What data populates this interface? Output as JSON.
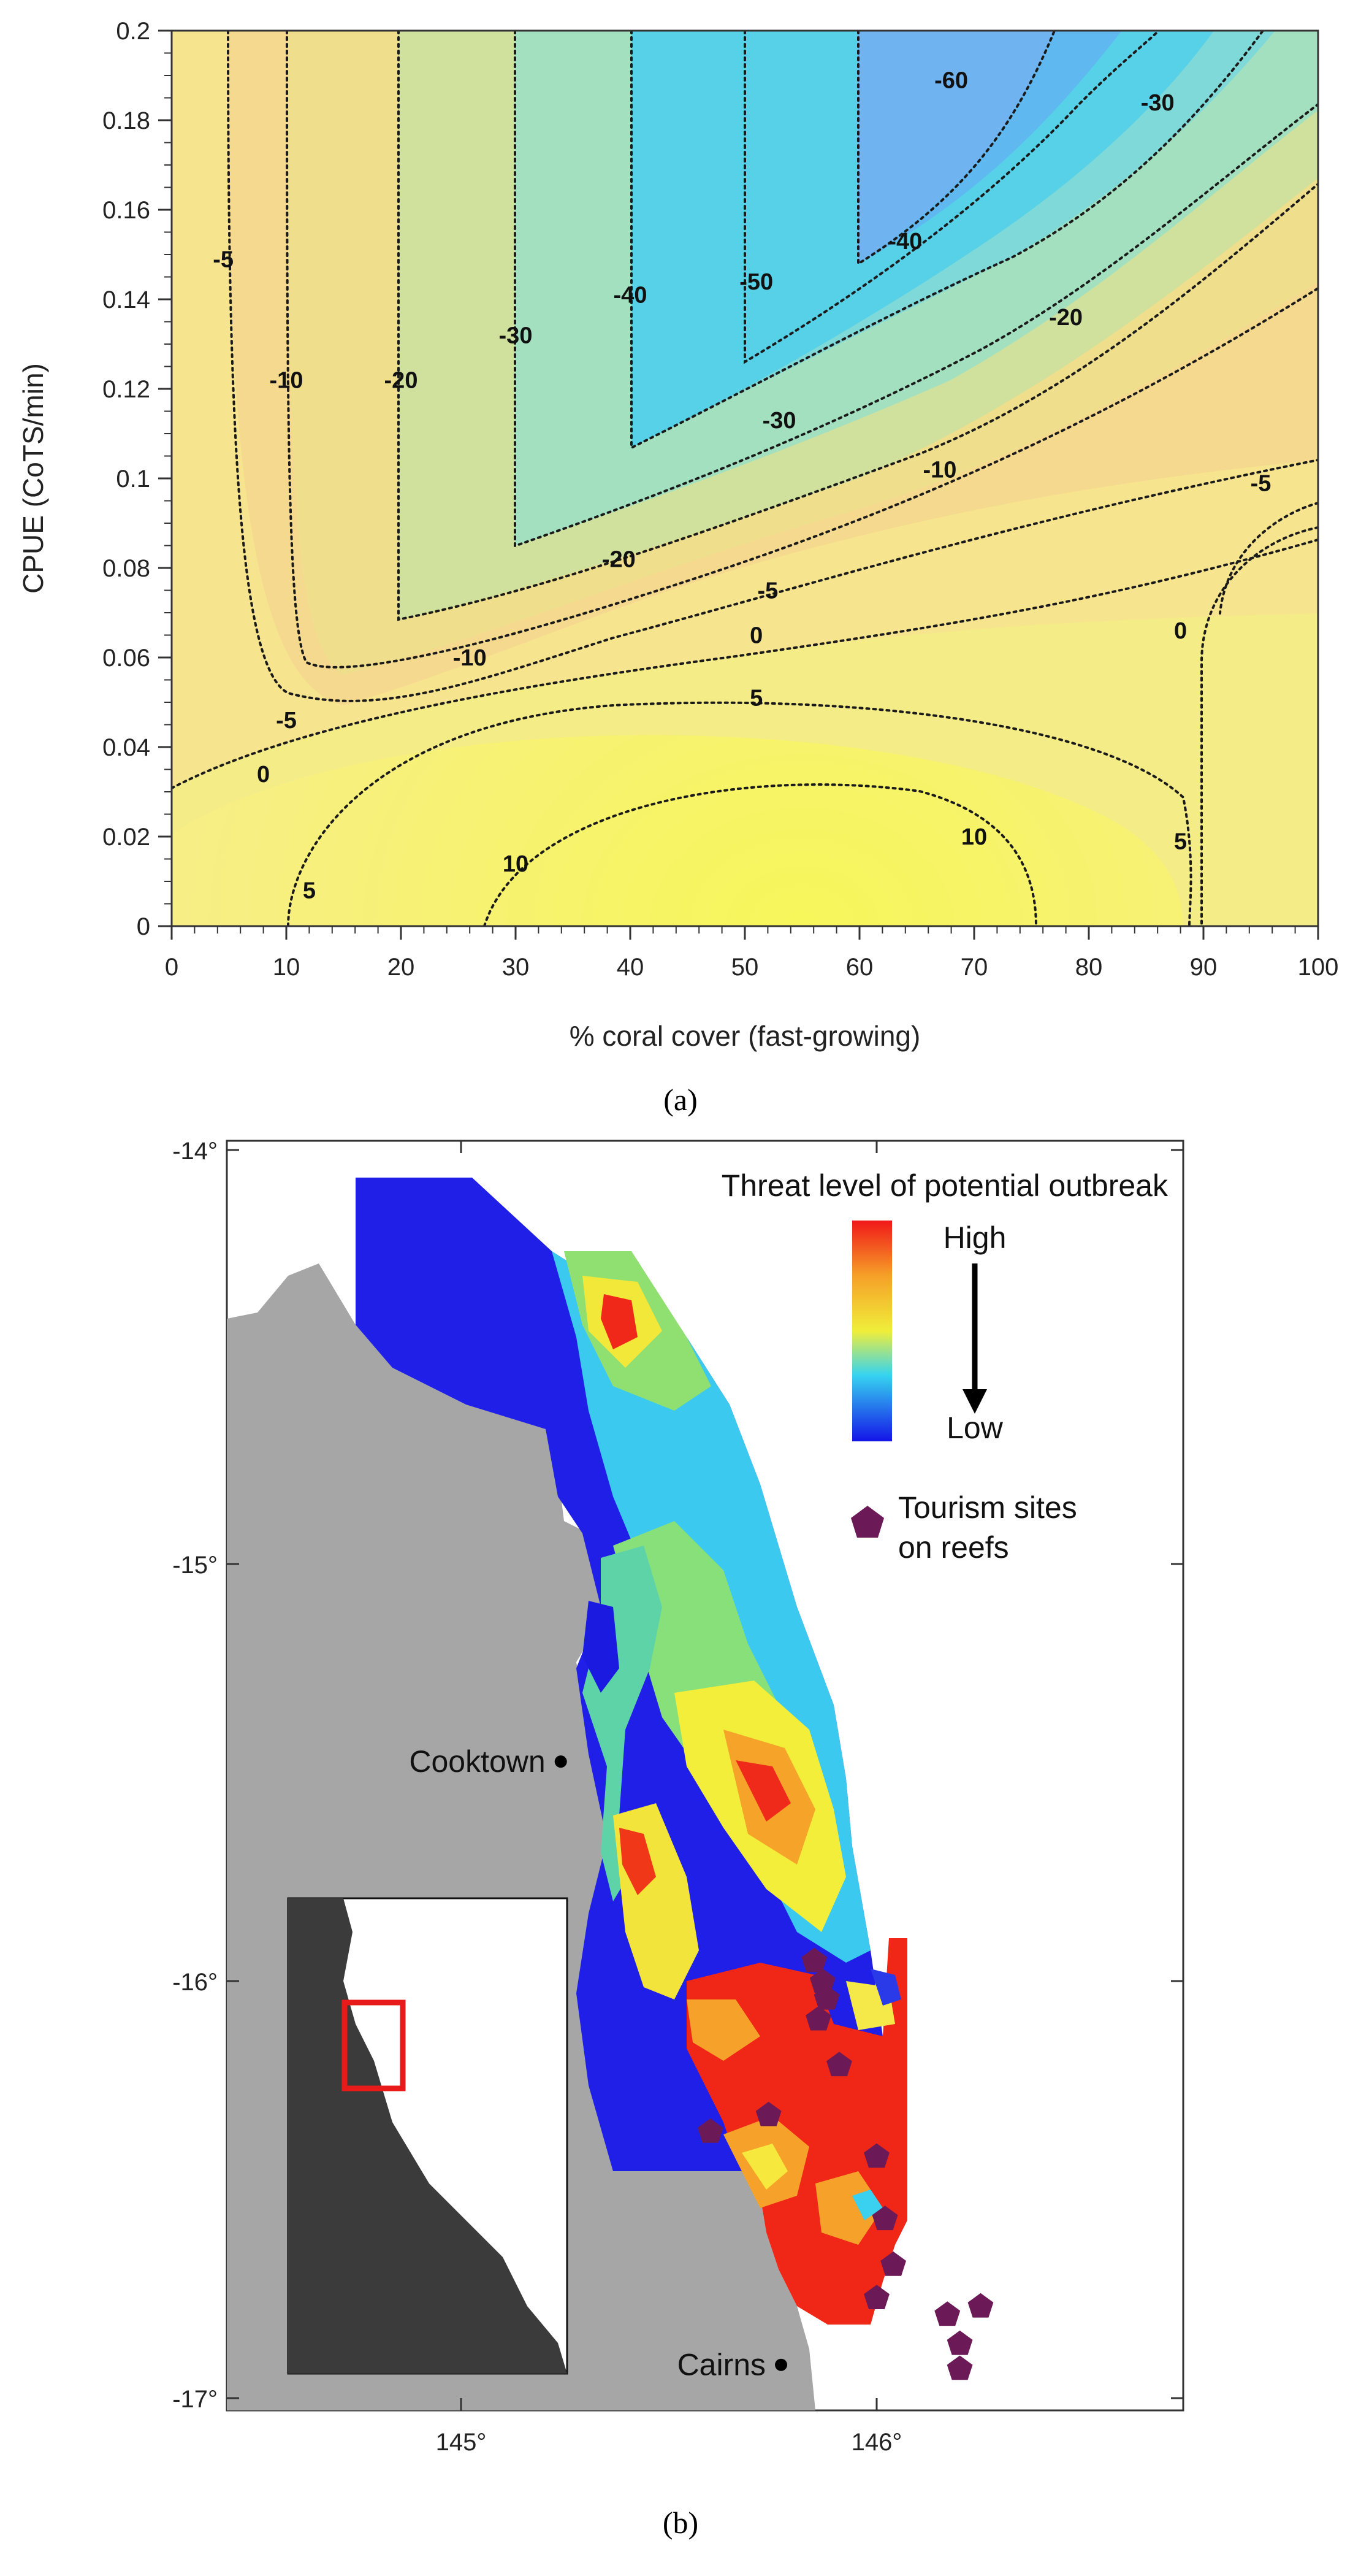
{
  "panels": {
    "a_label": "(a)",
    "b_label": "(b)"
  },
  "chart_data": [
    {
      "type": "contour",
      "title": "",
      "xlabel": "% coral cover (fast-growing)",
      "ylabel": "CPUE (CoTS/min)",
      "xlim": [
        0,
        100
      ],
      "ylim": [
        0,
        0.2
      ],
      "x_ticks": [
        "0",
        "10",
        "20",
        "30",
        "40",
        "50",
        "60",
        "70",
        "80",
        "90",
        "100"
      ],
      "y_ticks": [
        "0",
        "0.02",
        "0.04",
        "0.06",
        "0.08",
        "0.1",
        "0.12",
        "0.14",
        "0.16",
        "0.18",
        "0.2"
      ],
      "contour_levels": [
        -60,
        -50,
        -40,
        -30,
        -20,
        -10,
        -5,
        0,
        5,
        10
      ],
      "colormap_low_color": "#6aa8f0",
      "colormap_high_color": "#f5f55a",
      "contour_labels": [
        {
          "text": "-5",
          "x": 4.5,
          "y": 0.149
        },
        {
          "text": "-10",
          "x": 10,
          "y": 0.122
        },
        {
          "text": "-20",
          "x": 20,
          "y": 0.122
        },
        {
          "text": "-30",
          "x": 30,
          "y": 0.132
        },
        {
          "text": "-40",
          "x": 40,
          "y": 0.141
        },
        {
          "text": "-50",
          "x": 51,
          "y": 0.144
        },
        {
          "text": "-60",
          "x": 68,
          "y": 0.189
        },
        {
          "text": "-40",
          "x": 64,
          "y": 0.153
        },
        {
          "text": "-30",
          "x": 53,
          "y": 0.113
        },
        {
          "text": "-20",
          "x": 39,
          "y": 0.082
        },
        {
          "text": "-10",
          "x": 26,
          "y": 0.06
        },
        {
          "text": "-5",
          "x": 10,
          "y": 0.046
        },
        {
          "text": "0",
          "x": 8,
          "y": 0.034
        },
        {
          "text": "-30",
          "x": 86,
          "y": 0.184
        },
        {
          "text": "-20",
          "x": 78,
          "y": 0.136
        },
        {
          "text": "-10",
          "x": 67,
          "y": 0.102
        },
        {
          "text": "-5",
          "x": 52,
          "y": 0.075
        },
        {
          "text": "0",
          "x": 51,
          "y": 0.065
        },
        {
          "text": "5",
          "x": 51,
          "y": 0.051
        },
        {
          "text": "-5",
          "x": 95,
          "y": 0.099
        },
        {
          "text": "0",
          "x": 88,
          "y": 0.066
        },
        {
          "text": "5",
          "x": 12,
          "y": 0.008
        },
        {
          "text": "10",
          "x": 30,
          "y": 0.014
        },
        {
          "text": "10",
          "x": 70,
          "y": 0.02
        },
        {
          "text": "5",
          "x": 88,
          "y": 0.019
        }
      ]
    },
    {
      "type": "map",
      "title": "",
      "x_ticks": [
        "145°",
        "146°"
      ],
      "y_ticks": [
        "-14°",
        "-15°",
        "-16°",
        "-17°"
      ],
      "xlim": [
        144.5,
        146.9
      ],
      "ylim": [
        -17.05,
        -13.95
      ],
      "legend": {
        "title": "Threat level of potential outbreak",
        "high": "High",
        "low": "Low",
        "tourism_label_1": "Tourism sites",
        "tourism_label_2": "on reefs",
        "tourism_color": "#6b1a57"
      },
      "places": [
        {
          "name": "Cooktown",
          "lon": 145.24,
          "lat": -15.47
        },
        {
          "name": "Cairns",
          "lon": 145.77,
          "lat": -16.92
        }
      ],
      "tourism_sites": [
        [
          145.85,
          -15.95
        ],
        [
          145.87,
          -16.0
        ],
        [
          145.88,
          -16.04
        ],
        [
          145.86,
          -16.09
        ],
        [
          145.91,
          -16.2
        ],
        [
          145.74,
          -16.32
        ],
        [
          145.6,
          -16.36
        ],
        [
          146.0,
          -16.42
        ],
        [
          146.02,
          -16.57
        ],
        [
          146.04,
          -16.68
        ],
        [
          146.0,
          -16.76
        ],
        [
          146.17,
          -16.8
        ],
        [
          146.25,
          -16.78
        ],
        [
          146.2,
          -16.87
        ],
        [
          146.2,
          -16.93
        ]
      ]
    }
  ]
}
